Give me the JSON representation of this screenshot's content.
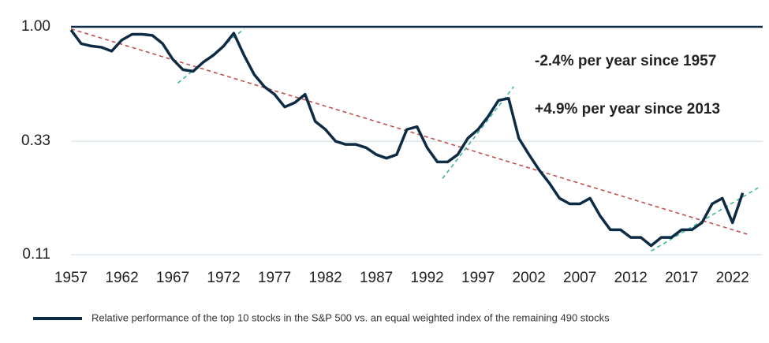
{
  "chart_data": {
    "type": "line",
    "log_scale_y": true,
    "grid": true,
    "xlim": [
      1957,
      2024.5
    ],
    "ylim": [
      0.11,
      1.0
    ],
    "xticks": [
      1957,
      1962,
      1967,
      1972,
      1977,
      1982,
      1987,
      1992,
      1997,
      2002,
      2007,
      2012,
      2017,
      2022
    ],
    "yticks": [
      {
        "value": 1,
        "label": "1.00"
      },
      0.33,
      0.11
    ],
    "x": [
      1957,
      1958,
      1959,
      1960,
      1961,
      1962,
      1963,
      1964,
      1965,
      1966,
      1967,
      1968,
      1969,
      1970,
      1971,
      1972,
      1973,
      1974,
      1975,
      1976,
      1977,
      1978,
      1979,
      1980,
      1981,
      1982,
      1983,
      1984,
      1985,
      1986,
      1987,
      1988,
      1989,
      1990,
      1991,
      1992,
      1993,
      1994,
      1995,
      1996,
      1997,
      1998,
      1999,
      2000,
      2001,
      2002,
      2003,
      2004,
      2005,
      2006,
      2007,
      2008,
      2009,
      2010,
      2011,
      2012,
      2013,
      2014,
      2015,
      2016,
      2017,
      2018,
      2019,
      2020,
      2021,
      2022,
      2023
    ],
    "series": [
      {
        "name": "Relative performance of the top 10 stocks in the S&P 500 vs. an equal weighted index of the remaining 490 stocks",
        "color": "#0d2b45",
        "values": [
          0.97,
          0.85,
          0.83,
          0.82,
          0.79,
          0.88,
          0.93,
          0.93,
          0.92,
          0.85,
          0.73,
          0.66,
          0.65,
          0.71,
          0.76,
          0.83,
          0.94,
          0.76,
          0.63,
          0.56,
          0.52,
          0.46,
          0.48,
          0.52,
          0.4,
          0.37,
          0.33,
          0.32,
          0.32,
          0.31,
          0.29,
          0.28,
          0.29,
          0.37,
          0.38,
          0.31,
          0.27,
          0.27,
          0.29,
          0.34,
          0.37,
          0.42,
          0.49,
          0.5,
          0.34,
          0.29,
          0.25,
          0.22,
          0.19,
          0.18,
          0.18,
          0.19,
          0.16,
          0.14,
          0.14,
          0.13,
          0.13,
          0.12,
          0.13,
          0.13,
          0.14,
          0.14,
          0.15,
          0.18,
          0.19,
          0.15,
          0.2
        ]
      }
    ],
    "trendlines": [
      {
        "color": "#c0504d",
        "x": [
          1957,
          2023.5
        ],
        "values": [
          0.98,
          0.134
        ]
      },
      {
        "color": "#3cb89a",
        "x": [
          1967.5,
          1974
        ],
        "values": [
          0.58,
          0.98
        ]
      },
      {
        "color": "#3cb89a",
        "x": [
          1993.5,
          2000.5
        ],
        "values": [
          0.23,
          0.56
        ]
      },
      {
        "color": "#3cb89a",
        "x": [
          2014,
          2024.5
        ],
        "values": [
          0.114,
          0.21
        ]
      }
    ],
    "annotations": [
      "-2.4% per year since 1957",
      "+4.9% per year since 2013"
    ]
  }
}
